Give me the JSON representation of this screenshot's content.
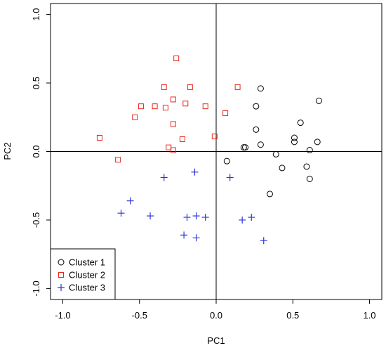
{
  "chart_data": {
    "type": "scatter",
    "title": "",
    "xlabel": "PC1",
    "ylabel": "PC2",
    "xlim": [
      -1.08,
      1.08
    ],
    "ylim": [
      -1.08,
      1.08
    ],
    "x_ticks": [
      -1.0,
      -0.5,
      0.0,
      0.5,
      1.0
    ],
    "y_ticks": [
      -1.0,
      -0.5,
      0.0,
      0.5,
      1.0
    ],
    "x_tick_labels": [
      "-1.0",
      "-0.5",
      "0.0",
      "0.5",
      "1.0"
    ],
    "y_tick_labels": [
      "-1.0",
      "-0.5",
      "0.0",
      "0.5",
      "1.0"
    ],
    "reference_lines": {
      "vertical_at_x": 0.0,
      "horizontal_at_y": 0.0
    },
    "grid": false,
    "legend_position": "bottom-left",
    "series": [
      {
        "name": "Cluster 1",
        "marker": "circle",
        "color": "#000000",
        "points": [
          [
            0.67,
            0.37
          ],
          [
            0.29,
            0.46
          ],
          [
            0.26,
            0.33
          ],
          [
            0.55,
            0.21
          ],
          [
            0.26,
            0.16
          ],
          [
            0.51,
            0.1
          ],
          [
            0.51,
            0.07
          ],
          [
            0.66,
            0.07
          ],
          [
            0.29,
            0.05
          ],
          [
            0.19,
            0.03
          ],
          [
            0.18,
            0.03
          ],
          [
            0.61,
            0.01
          ],
          [
            0.39,
            -0.02
          ],
          [
            0.07,
            -0.07
          ],
          [
            0.59,
            -0.11
          ],
          [
            0.43,
            -0.12
          ],
          [
            0.61,
            -0.2
          ],
          [
            0.35,
            -0.31
          ]
        ]
      },
      {
        "name": "Cluster 2",
        "marker": "square",
        "color": "#e8271c",
        "points": [
          [
            -0.26,
            0.68
          ],
          [
            -0.34,
            0.47
          ],
          [
            -0.17,
            0.47
          ],
          [
            0.14,
            0.47
          ],
          [
            -0.28,
            0.38
          ],
          [
            -0.2,
            0.35
          ],
          [
            -0.49,
            0.33
          ],
          [
            -0.4,
            0.33
          ],
          [
            -0.33,
            0.32
          ],
          [
            -0.07,
            0.33
          ],
          [
            0.06,
            0.28
          ],
          [
            -0.53,
            0.25
          ],
          [
            -0.28,
            0.2
          ],
          [
            -0.76,
            0.1
          ],
          [
            -0.22,
            0.09
          ],
          [
            -0.01,
            0.11
          ],
          [
            -0.31,
            0.03
          ],
          [
            -0.28,
            0.01
          ],
          [
            -0.64,
            -0.06
          ]
        ]
      },
      {
        "name": "Cluster 3",
        "marker": "plus",
        "color": "#2a36d8",
        "points": [
          [
            -0.14,
            -0.15
          ],
          [
            -0.34,
            -0.19
          ],
          [
            0.09,
            -0.19
          ],
          [
            -0.56,
            -0.36
          ],
          [
            -0.62,
            -0.45
          ],
          [
            -0.43,
            -0.47
          ],
          [
            -0.19,
            -0.48
          ],
          [
            -0.13,
            -0.47
          ],
          [
            -0.07,
            -0.48
          ],
          [
            0.23,
            -0.48
          ],
          [
            0.17,
            -0.5
          ],
          [
            -0.21,
            -0.61
          ],
          [
            -0.13,
            -0.63
          ],
          [
            0.31,
            -0.65
          ]
        ]
      }
    ]
  }
}
